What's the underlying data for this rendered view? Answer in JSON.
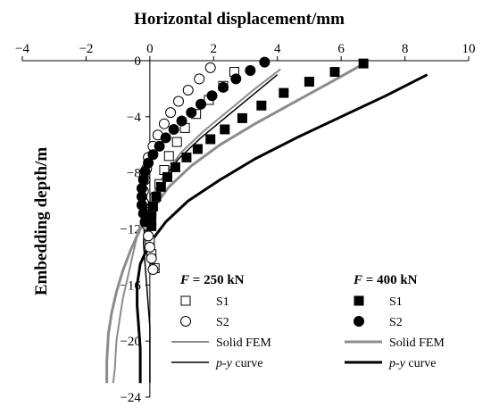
{
  "chart_data": {
    "type": "line",
    "xlabel": "Horizontal displacement/mm",
    "ylabel": "Embedding depth/m",
    "xlim": [
      -4,
      10
    ],
    "ylim": [
      -24,
      0
    ],
    "x_axis_position": "top",
    "xticks": [
      "−4",
      "−2",
      "0",
      "2",
      "4",
      "6",
      "8",
      "10"
    ],
    "yticks": [
      "0",
      "−4",
      "−8",
      "−12",
      "−16",
      "−20",
      "−24"
    ],
    "grid": false,
    "legend_groups": [
      {
        "heading_var": "F",
        "heading_value": " = 250 kN",
        "placement": "bottom-left",
        "items": [
          "S1",
          "S2",
          "Solid FEM",
          "p-y curve"
        ]
      },
      {
        "heading_var": "F",
        "heading_value": " = 400 kN",
        "placement": "bottom-right",
        "items": [
          "S1",
          "S2",
          "Solid FEM",
          "p-y curve"
        ]
      }
    ],
    "series": [
      {
        "name": "S1",
        "group": "F = 250 kN",
        "marker": "open-square",
        "color": "#000000",
        "points": [
          [
            2.65,
            -0.8
          ],
          [
            2.3,
            -1.8
          ],
          [
            1.85,
            -2.8
          ],
          [
            1.45,
            -3.8
          ],
          [
            1.1,
            -4.8
          ],
          [
            0.85,
            -5.8
          ],
          [
            0.6,
            -6.8
          ],
          [
            0.45,
            -7.8
          ],
          [
            0.3,
            -8.8
          ],
          [
            0.15,
            -9.8
          ],
          [
            0.05,
            -10.8
          ],
          [
            -0.05,
            -11.8
          ],
          [
            0.0,
            -12.8
          ],
          [
            0.05,
            -13.8
          ],
          [
            0.15,
            -14.8
          ]
        ]
      },
      {
        "name": "S2",
        "group": "F = 250 kN",
        "marker": "open-circle",
        "color": "#000000",
        "points": [
          [
            1.9,
            -0.5
          ],
          [
            1.55,
            -1.3
          ],
          [
            1.2,
            -2.1
          ],
          [
            0.9,
            -2.9
          ],
          [
            0.65,
            -3.7
          ],
          [
            0.45,
            -4.5
          ],
          [
            0.25,
            -5.3
          ],
          [
            0.1,
            -6.1
          ],
          [
            -0.05,
            -6.9
          ],
          [
            -0.1,
            -7.7
          ],
          [
            -0.15,
            -8.5
          ],
          [
            -0.2,
            -9.3
          ],
          [
            -0.2,
            -10.1
          ],
          [
            -0.15,
            -10.9
          ],
          [
            -0.1,
            -11.7
          ],
          [
            -0.05,
            -12.5
          ],
          [
            0.0,
            -13.3
          ],
          [
            0.05,
            -14.1
          ],
          [
            0.1,
            -14.9
          ]
        ]
      },
      {
        "name": "Solid FEM",
        "group": "F = 250 kN",
        "style": "line",
        "color": "#8c8c8c",
        "width": 2,
        "points": [
          [
            4.1,
            -0.6
          ],
          [
            3.3,
            -2.0
          ],
          [
            2.5,
            -3.5
          ],
          [
            1.7,
            -5.0
          ],
          [
            1.0,
            -6.5
          ],
          [
            0.5,
            -8.0
          ],
          [
            0.1,
            -9.5
          ],
          [
            -0.2,
            -11.0
          ],
          [
            -0.4,
            -12.5
          ],
          [
            -0.55,
            -14.0
          ],
          [
            -0.7,
            -15.5
          ],
          [
            -0.85,
            -17.0
          ],
          [
            -0.95,
            -18.5
          ],
          [
            -1.05,
            -20.0
          ],
          [
            -1.1,
            -22.0
          ],
          [
            -1.15,
            -23.0
          ]
        ]
      },
      {
        "name": "p-y curve",
        "group": "F = 250 kN",
        "style": "line",
        "color": "#000000",
        "width": 1.5,
        "points": [
          [
            4.0,
            -1.0
          ],
          [
            3.2,
            -2.5
          ],
          [
            2.4,
            -4.0
          ],
          [
            1.6,
            -5.5
          ],
          [
            0.9,
            -7.0
          ],
          [
            0.4,
            -8.5
          ],
          [
            0.05,
            -10.0
          ],
          [
            -0.15,
            -11.5
          ],
          [
            -0.2,
            -13.0
          ],
          [
            -0.15,
            -14.5
          ],
          [
            -0.1,
            -16.0
          ],
          [
            -0.05,
            -17.5
          ],
          [
            0.0,
            -19.0
          ],
          [
            0.0,
            -21.0
          ],
          [
            0.0,
            -23.0
          ]
        ]
      },
      {
        "name": "S1",
        "group": "F = 400 kN",
        "marker": "filled-square",
        "color": "#000000",
        "points": [
          [
            6.7,
            -0.2
          ],
          [
            5.8,
            -0.8
          ],
          [
            5.0,
            -1.5
          ],
          [
            4.2,
            -2.3
          ],
          [
            3.5,
            -3.2
          ],
          [
            2.9,
            -4.1
          ],
          [
            2.35,
            -4.9
          ],
          [
            1.9,
            -5.6
          ],
          [
            1.5,
            -6.3
          ],
          [
            1.15,
            -6.9
          ],
          [
            0.8,
            -7.6
          ],
          [
            0.55,
            -8.3
          ],
          [
            0.35,
            -9.0
          ],
          [
            0.2,
            -9.7
          ],
          [
            0.1,
            -10.4
          ],
          [
            0.05,
            -11.1
          ],
          [
            0.05,
            -11.8
          ]
        ]
      },
      {
        "name": "S2",
        "group": "F = 400 kN",
        "marker": "filled-circle",
        "color": "#000000",
        "points": [
          [
            3.6,
            -0.1
          ],
          [
            3.15,
            -0.7
          ],
          [
            2.7,
            -1.3
          ],
          [
            2.3,
            -1.9
          ],
          [
            1.95,
            -2.5
          ],
          [
            1.6,
            -3.1
          ],
          [
            1.3,
            -3.7
          ],
          [
            1.0,
            -4.3
          ],
          [
            0.75,
            -4.9
          ],
          [
            0.5,
            -5.5
          ],
          [
            0.3,
            -6.1
          ],
          [
            0.1,
            -6.7
          ],
          [
            -0.05,
            -7.3
          ],
          [
            -0.15,
            -7.9
          ],
          [
            -0.2,
            -8.5
          ],
          [
            -0.25,
            -9.1
          ],
          [
            -0.25,
            -9.7
          ],
          [
            -0.25,
            -10.3
          ],
          [
            -0.2,
            -10.9
          ],
          [
            -0.15,
            -11.5
          ]
        ]
      },
      {
        "name": "Solid FEM",
        "group": "F = 400 kN",
        "style": "line",
        "color": "#8c8c8c",
        "width": 3,
        "points": [
          [
            6.8,
            -0.1
          ],
          [
            5.7,
            -1.5
          ],
          [
            4.5,
            -3.0
          ],
          [
            3.3,
            -4.5
          ],
          [
            2.2,
            -6.0
          ],
          [
            1.3,
            -7.5
          ],
          [
            0.6,
            -9.0
          ],
          [
            0.1,
            -10.5
          ],
          [
            -0.3,
            -12.0
          ],
          [
            -0.6,
            -13.5
          ],
          [
            -0.85,
            -15.0
          ],
          [
            -1.05,
            -16.5
          ],
          [
            -1.2,
            -18.0
          ],
          [
            -1.3,
            -19.5
          ],
          [
            -1.35,
            -21.5
          ],
          [
            -1.35,
            -23.0
          ]
        ]
      },
      {
        "name": "p-y curve",
        "group": "F = 400 kN",
        "style": "line",
        "color": "#000000",
        "width": 3,
        "points": [
          [
            8.7,
            -1.0
          ],
          [
            7.4,
            -2.5
          ],
          [
            6.0,
            -4.0
          ],
          [
            4.6,
            -5.5
          ],
          [
            3.3,
            -7.0
          ],
          [
            2.2,
            -8.5
          ],
          [
            1.2,
            -10.0
          ],
          [
            0.5,
            -11.5
          ],
          [
            0.0,
            -13.0
          ],
          [
            -0.3,
            -14.5
          ],
          [
            -0.4,
            -16.0
          ],
          [
            -0.4,
            -17.5
          ],
          [
            -0.35,
            -19.0
          ],
          [
            -0.3,
            -20.5
          ],
          [
            -0.3,
            -22.0
          ],
          [
            -0.3,
            -23.0
          ]
        ]
      }
    ]
  }
}
